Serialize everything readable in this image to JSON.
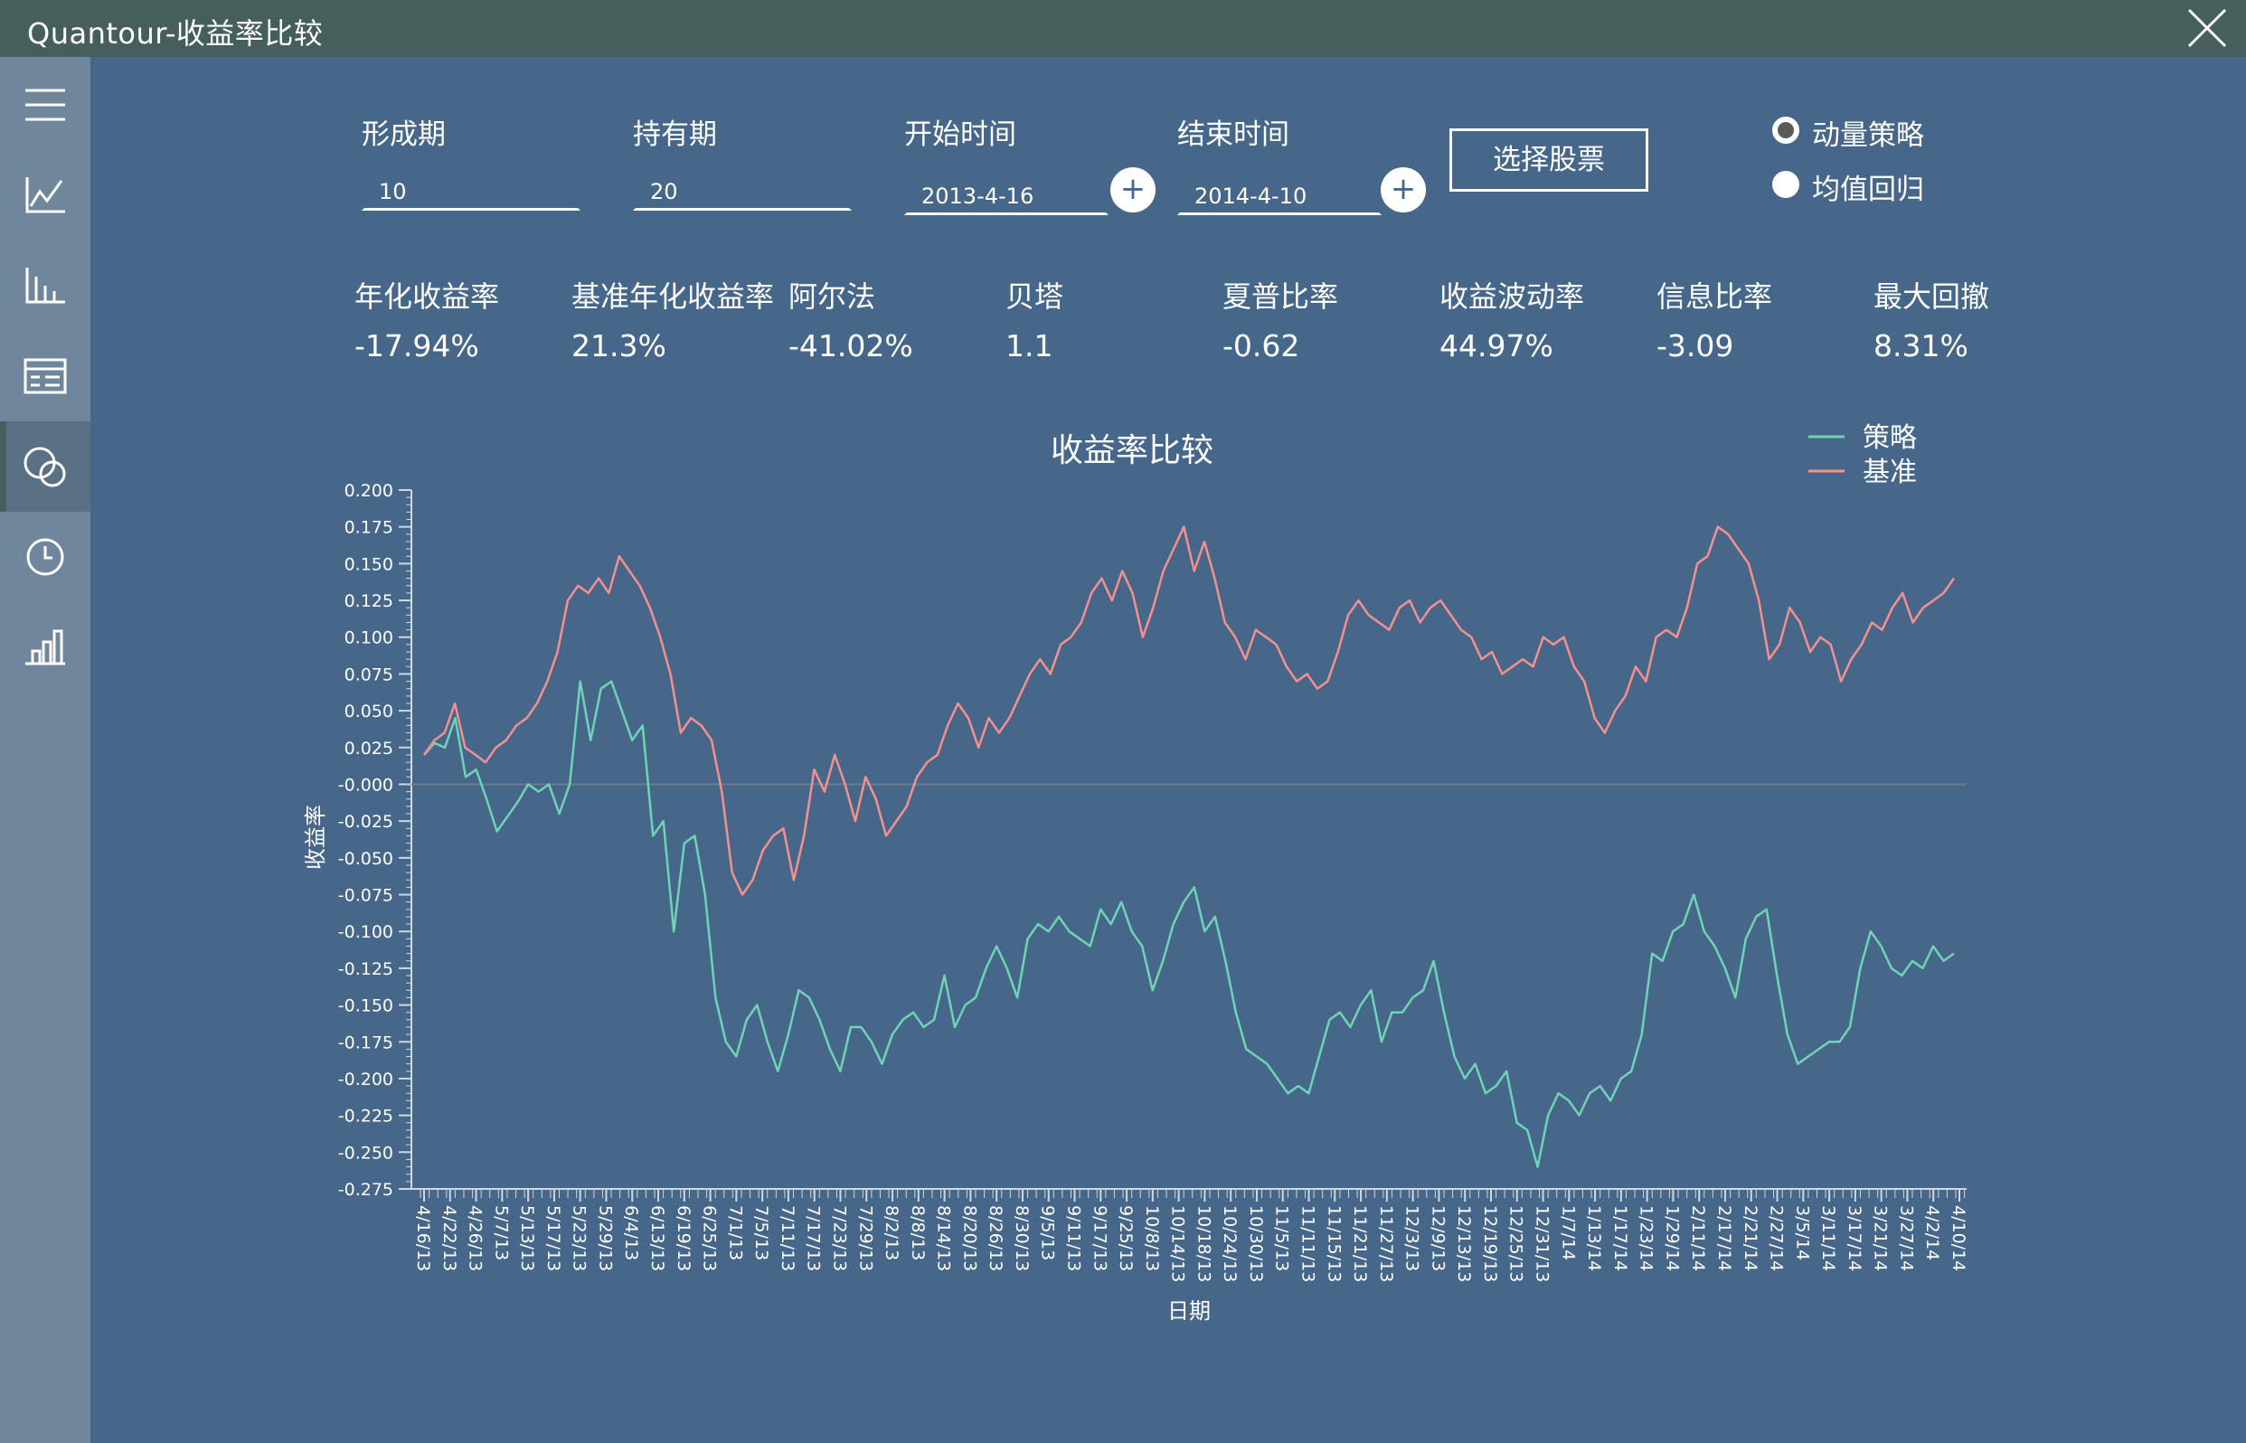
{
  "window": {
    "title": "Quantour-收益率比较"
  },
  "sidebar": {
    "items": [
      {
        "icon": "menu-icon"
      },
      {
        "icon": "line-chart-icon"
      },
      {
        "icon": "bar-chart-icon"
      },
      {
        "icon": "table-icon"
      },
      {
        "icon": "compare-circles-icon",
        "active": true
      },
      {
        "icon": "clock-icon"
      },
      {
        "icon": "histogram-icon"
      }
    ]
  },
  "params": {
    "formation_label": "形成期",
    "formation_value": "10",
    "holding_label": "持有期",
    "holding_value": "20",
    "start_label": "开始时间",
    "start_value": "2013-4-16",
    "end_label": "结束时间",
    "end_value": "2014-4-10",
    "select_stock_label": "选择股票"
  },
  "strategy_options": [
    {
      "label": "动量策略",
      "selected": true
    },
    {
      "label": "均值回归",
      "selected": false
    }
  ],
  "metrics": [
    {
      "name": "年化收益率",
      "value": "-17.94%"
    },
    {
      "name": "基准年化收益率",
      "value": "21.3%"
    },
    {
      "name": "阿尔法",
      "value": "-41.02%"
    },
    {
      "name": "贝塔",
      "value": "1.1"
    },
    {
      "name": "夏普比率",
      "value": "-0.62"
    },
    {
      "name": "收益波动率",
      "value": "44.97%"
    },
    {
      "name": "信息比率",
      "value": "-3.09"
    },
    {
      "name": "最大回撤",
      "value": "8.31%"
    }
  ],
  "colors": {
    "strategy": "#6fd3b6",
    "benchmark": "#f5908e",
    "background": "#46678a",
    "titlebar": "#465f5c"
  },
  "chart_data": {
    "type": "line",
    "title": "收益率比较",
    "xlabel": "日期",
    "ylabel": "收益率",
    "ylim": [
      -0.275,
      0.2
    ],
    "yticks": [
      "0.200",
      "0.175",
      "0.150",
      "0.125",
      "0.100",
      "0.075",
      "0.050",
      "0.025",
      "-0.000",
      "-0.025",
      "-0.050",
      "-0.075",
      "-0.100",
      "-0.125",
      "-0.150",
      "-0.175",
      "-0.200",
      "-0.225",
      "-0.250",
      "-0.275"
    ],
    "x_tick_labels": [
      "4/16/13",
      "4/22/13",
      "4/26/13",
      "5/7/13",
      "5/13/13",
      "5/17/13",
      "5/23/13",
      "5/29/13",
      "6/4/13",
      "6/13/13",
      "6/19/13",
      "6/25/13",
      "7/1/13",
      "7/5/13",
      "7/11/13",
      "7/17/13",
      "7/23/13",
      "7/29/13",
      "8/2/13",
      "8/8/13",
      "8/14/13",
      "8/20/13",
      "8/26/13",
      "8/30/13",
      "9/5/13",
      "9/11/13",
      "9/17/13",
      "9/25/13",
      "10/8/13",
      "10/14/13",
      "10/18/13",
      "10/24/13",
      "10/30/13",
      "11/5/13",
      "11/11/13",
      "11/15/13",
      "11/21/13",
      "11/27/13",
      "12/3/13",
      "12/9/13",
      "12/13/13",
      "12/19/13",
      "12/25/13",
      "12/31/13",
      "1/7/14",
      "1/13/14",
      "1/17/14",
      "1/23/14",
      "1/29/14",
      "2/11/14",
      "2/17/14",
      "2/21/14",
      "2/27/14",
      "3/5/14",
      "3/11/14",
      "3/17/14",
      "3/21/14",
      "3/27/14",
      "4/2/14",
      "4/10/14"
    ],
    "legend_position": "top-right",
    "series": [
      {
        "name": "策略",
        "color": "#6fd3b6",
        "values": [
          0.02,
          0.028,
          0.025,
          0.045,
          0.005,
          0.01,
          -0.01,
          -0.032,
          -0.022,
          -0.012,
          0.0,
          -0.005,
          0.0,
          -0.02,
          0.0,
          0.07,
          0.03,
          0.065,
          0.07,
          0.05,
          0.03,
          0.04,
          -0.035,
          -0.025,
          -0.1,
          -0.04,
          -0.035,
          -0.075,
          -0.145,
          -0.175,
          -0.185,
          -0.16,
          -0.15,
          -0.175,
          -0.195,
          -0.17,
          -0.14,
          -0.145,
          -0.16,
          -0.18,
          -0.195,
          -0.165,
          -0.165,
          -0.175,
          -0.19,
          -0.17,
          -0.16,
          -0.155,
          -0.165,
          -0.16,
          -0.13,
          -0.165,
          -0.15,
          -0.145,
          -0.125,
          -0.11,
          -0.125,
          -0.145,
          -0.105,
          -0.095,
          -0.1,
          -0.09,
          -0.1,
          -0.105,
          -0.11,
          -0.085,
          -0.095,
          -0.08,
          -0.1,
          -0.11,
          -0.14,
          -0.12,
          -0.095,
          -0.08,
          -0.07,
          -0.1,
          -0.09,
          -0.12,
          -0.155,
          -0.18,
          -0.185,
          -0.19,
          -0.2,
          -0.21,
          -0.205,
          -0.21,
          -0.185,
          -0.16,
          -0.155,
          -0.165,
          -0.15,
          -0.14,
          -0.175,
          -0.155,
          -0.155,
          -0.145,
          -0.14,
          -0.12,
          -0.155,
          -0.185,
          -0.2,
          -0.19,
          -0.21,
          -0.205,
          -0.195,
          -0.23,
          -0.235,
          -0.26,
          -0.225,
          -0.21,
          -0.215,
          -0.225,
          -0.21,
          -0.205,
          -0.215,
          -0.2,
          -0.195,
          -0.17,
          -0.115,
          -0.12,
          -0.1,
          -0.095,
          -0.075,
          -0.1,
          -0.11,
          -0.125,
          -0.145,
          -0.105,
          -0.09,
          -0.085,
          -0.13,
          -0.17,
          -0.19,
          -0.185,
          -0.18,
          -0.175,
          -0.175,
          -0.165,
          -0.125,
          -0.1,
          -0.11,
          -0.125,
          -0.13,
          -0.12,
          -0.125,
          -0.11,
          -0.12,
          -0.115
        ]
      },
      {
        "name": "基准",
        "color": "#f5908e",
        "values": [
          0.02,
          0.03,
          0.035,
          0.055,
          0.025,
          0.02,
          0.015,
          0.025,
          0.03,
          0.04,
          0.045,
          0.055,
          0.07,
          0.09,
          0.125,
          0.135,
          0.13,
          0.14,
          0.13,
          0.155,
          0.145,
          0.135,
          0.12,
          0.1,
          0.075,
          0.035,
          0.045,
          0.04,
          0.03,
          -0.005,
          -0.06,
          -0.075,
          -0.065,
          -0.045,
          -0.035,
          -0.03,
          -0.065,
          -0.035,
          0.01,
          -0.005,
          0.02,
          0.0,
          -0.025,
          0.005,
          -0.01,
          -0.035,
          -0.025,
          -0.015,
          0.005,
          0.015,
          0.02,
          0.04,
          0.055,
          0.045,
          0.025,
          0.045,
          0.035,
          0.045,
          0.06,
          0.075,
          0.085,
          0.075,
          0.095,
          0.1,
          0.11,
          0.13,
          0.14,
          0.125,
          0.145,
          0.13,
          0.1,
          0.12,
          0.145,
          0.16,
          0.175,
          0.145,
          0.165,
          0.14,
          0.11,
          0.1,
          0.085,
          0.105,
          0.1,
          0.095,
          0.08,
          0.07,
          0.075,
          0.065,
          0.07,
          0.09,
          0.115,
          0.125,
          0.115,
          0.11,
          0.105,
          0.12,
          0.125,
          0.11,
          0.12,
          0.125,
          0.115,
          0.105,
          0.1,
          0.085,
          0.09,
          0.075,
          0.08,
          0.085,
          0.08,
          0.1,
          0.095,
          0.1,
          0.08,
          0.07,
          0.045,
          0.035,
          0.05,
          0.06,
          0.08,
          0.07,
          0.1,
          0.105,
          0.1,
          0.12,
          0.15,
          0.155,
          0.175,
          0.17,
          0.16,
          0.15,
          0.125,
          0.085,
          0.095,
          0.12,
          0.11,
          0.09,
          0.1,
          0.095,
          0.07,
          0.085,
          0.095,
          0.11,
          0.105,
          0.12,
          0.13,
          0.11,
          0.12,
          0.125,
          0.13,
          0.14
        ]
      }
    ]
  }
}
